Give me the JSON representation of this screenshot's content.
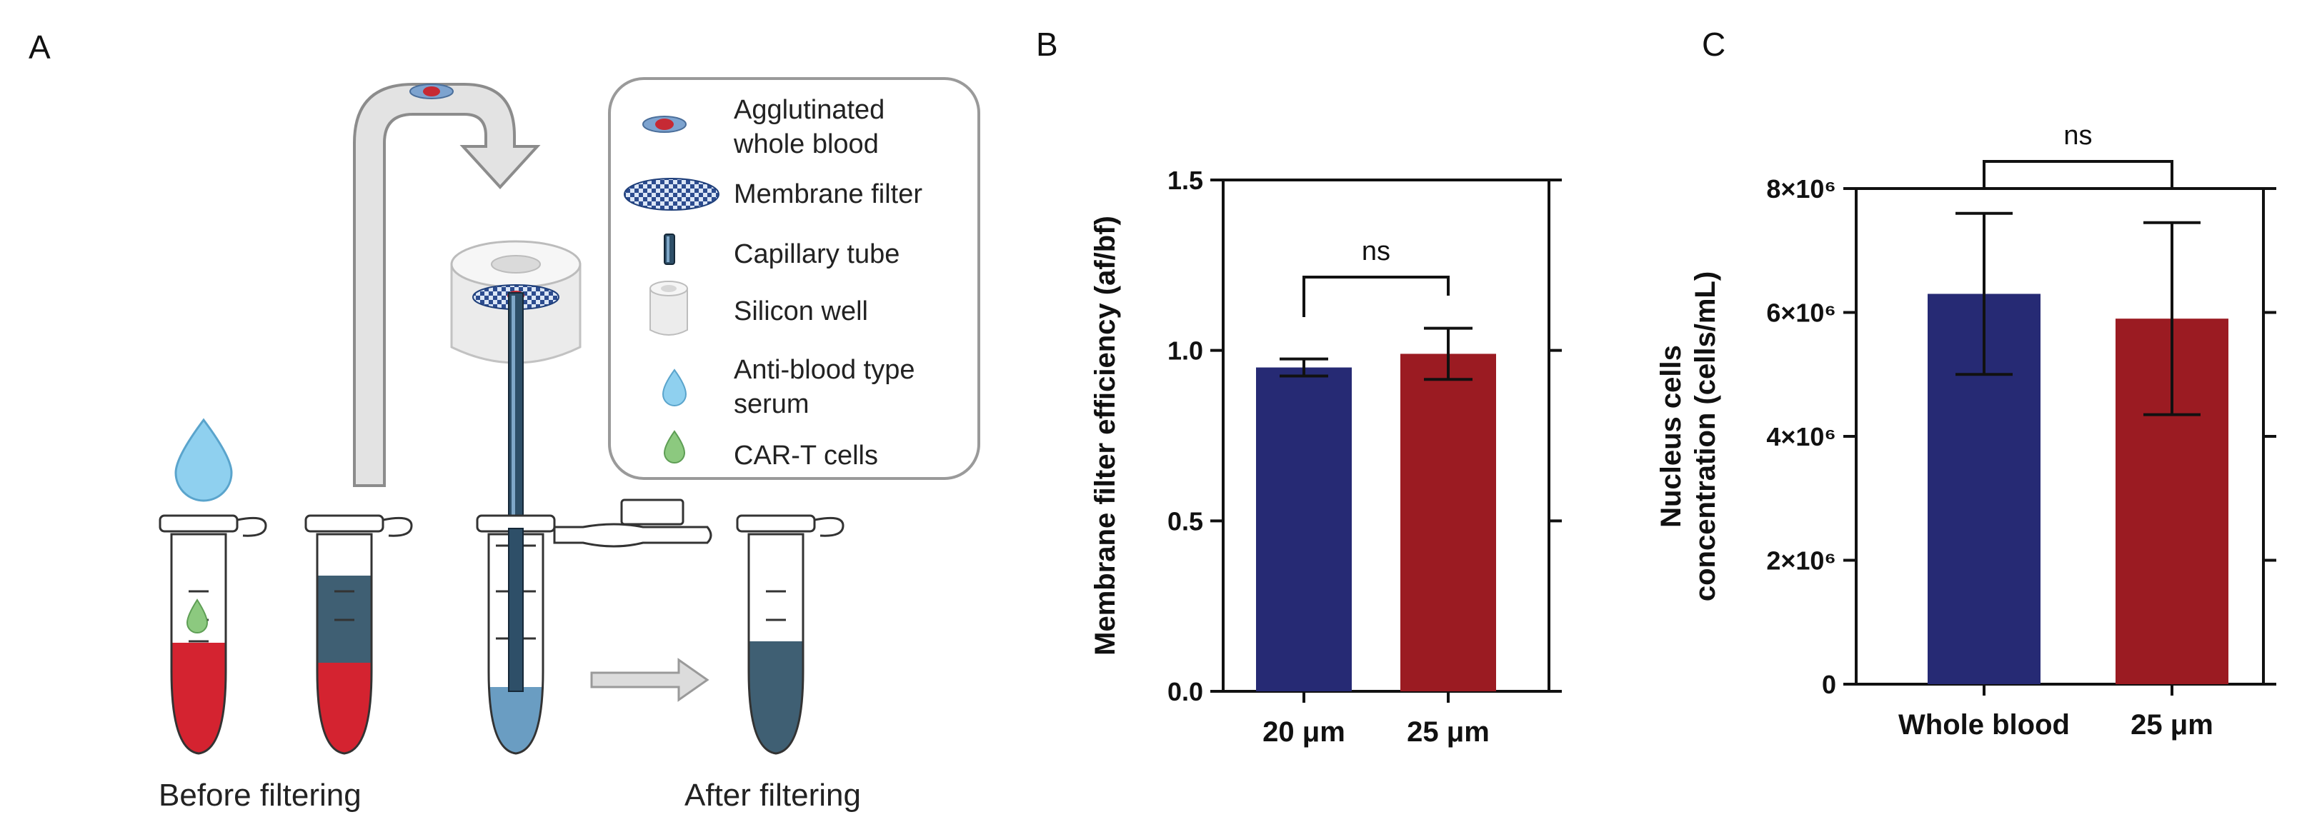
{
  "panel_a": {
    "letter": "A",
    "legend": [
      {
        "icon": "agglutinated-blood-icon",
        "text": [
          "Agglutinated",
          "whole blood"
        ]
      },
      {
        "icon": "membrane-filter-icon",
        "text": [
          "Membrane filter"
        ]
      },
      {
        "icon": "capillary-tube-icon",
        "text": [
          "Capillary tube"
        ]
      },
      {
        "icon": "silicon-well-icon",
        "text": [
          "Silicon well"
        ]
      },
      {
        "icon": "serum-drop-icon",
        "text": [
          "Anti-blood type",
          "serum"
        ]
      },
      {
        "icon": "car-t-drop-icon",
        "text": [
          "CAR-T cells"
        ]
      }
    ],
    "caption_before": "Before filtering",
    "caption_after": "After filtering",
    "colors": {
      "blood": "#d42330",
      "filtered": "#3f5f73",
      "serum": "#8fd0ef",
      "cart": "#8cc97f",
      "arrow": "#9a9a9a",
      "capillary": "#2e4f68"
    }
  },
  "chart_data": [
    {
      "panel": "B",
      "type": "bar",
      "categories": [
        "20 μm",
        "25 μm"
      ],
      "values": [
        0.95,
        0.99
      ],
      "errors": [
        0.025,
        0.075
      ],
      "colors": [
        "#262a74",
        "#9b1b22"
      ],
      "ylabel": "Membrane filter efficiency (af/bf)",
      "ylim": [
        0,
        1.5
      ],
      "yticks": [
        "0.0",
        "0.5",
        "1.0",
        "1.5"
      ],
      "yticks_values": [
        0,
        0.5,
        1.0,
        1.5
      ],
      "significance": "ns",
      "box": true
    },
    {
      "panel": "C",
      "type": "bar",
      "categories": [
        "Whole blood",
        "25 μm"
      ],
      "values": [
        6300000,
        5900000
      ],
      "errors": [
        1300000,
        1550000
      ],
      "colors": [
        "#262a74",
        "#9b1b22"
      ],
      "ylabel": [
        "Nucleus cells",
        "concentration (cells/mL)"
      ],
      "ylim": [
        0,
        8000000
      ],
      "yticks": [
        "0",
        "2×10⁶",
        "4×10⁶",
        "6×10⁶",
        "8×10⁶"
      ],
      "yticks_values": [
        0,
        2000000,
        4000000,
        6000000,
        8000000
      ],
      "significance": "ns",
      "box": true
    }
  ]
}
